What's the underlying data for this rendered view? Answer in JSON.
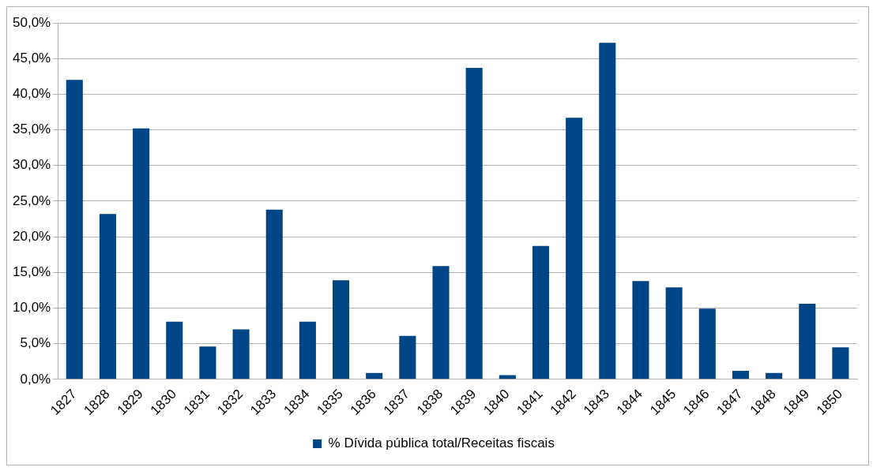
{
  "chart_data": {
    "type": "bar",
    "categories": [
      "1827",
      "1828",
      "1829",
      "1830",
      "1831",
      "1832",
      "1833",
      "1834",
      "1835",
      "1836",
      "1837",
      "1838",
      "1839",
      "1840",
      "1841",
      "1842",
      "1843",
      "1844",
      "1845",
      "1846",
      "1847",
      "1848",
      "1849",
      "1850"
    ],
    "series": [
      {
        "name": "% Dívida pública total/Receitas fiscais",
        "color": "#004586",
        "values": [
          42.0,
          23.2,
          35.2,
          8.1,
          4.6,
          7.0,
          23.8,
          8.1,
          13.9,
          0.9,
          6.1,
          15.9,
          43.7,
          0.6,
          18.7,
          36.7,
          47.2,
          13.8,
          12.9,
          9.9,
          1.2,
          0.9,
          10.6,
          4.5
        ]
      }
    ],
    "ylim": [
      0,
      50
    ],
    "yticks": [
      {
        "value": 0,
        "label": "0,0%"
      },
      {
        "value": 5,
        "label": "5,0%"
      },
      {
        "value": 10,
        "label": "10,0%"
      },
      {
        "value": 15,
        "label": "15,0%"
      },
      {
        "value": 20,
        "label": "20,0%"
      },
      {
        "value": 25,
        "label": "25,0%"
      },
      {
        "value": 30,
        "label": "30,0%"
      },
      {
        "value": 35,
        "label": "35,0%"
      },
      {
        "value": 40,
        "label": "40,0%"
      },
      {
        "value": 45,
        "label": "45,0%"
      },
      {
        "value": 50,
        "label": "50,0%"
      }
    ],
    "grid": "y",
    "legend": "bottom"
  }
}
